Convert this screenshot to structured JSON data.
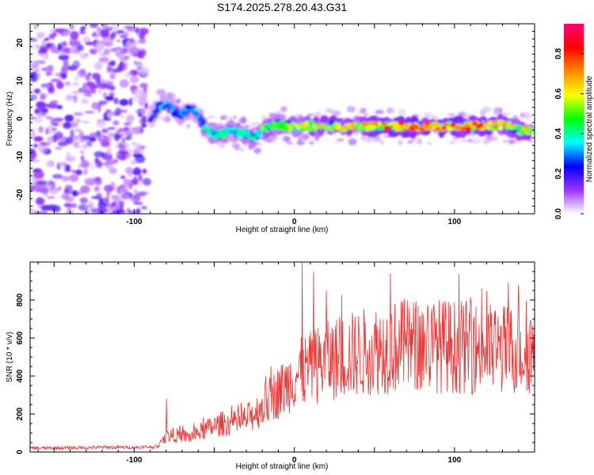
{
  "title": "S174.2025.278.20.43.G31",
  "chart_data": [
    {
      "type": "heatmap",
      "name": "spectrogram",
      "xlabel": "Height of straight line (km)",
      "ylabel": "Frequency (Hz)",
      "xlim": [
        -165,
        150
      ],
      "ylim": [
        -25,
        25
      ],
      "xticks": [
        -100,
        0,
        100
      ],
      "yticks": [
        -20,
        -10,
        0,
        10,
        20
      ],
      "xtick_labels": [
        "-100",
        "0",
        "100"
      ],
      "ytick_labels": [
        "-20",
        "-10",
        "0",
        "10",
        "20"
      ],
      "colorbar": {
        "label": "Normalized spectral amplitude",
        "range": [
          0,
          0.95
        ],
        "ticks": [
          0.0,
          0.2,
          0.4,
          0.6,
          0.8
        ],
        "tick_labels": [
          "0.0",
          "0.2",
          "0.4",
          "0.6",
          "0.8"
        ],
        "colors": [
          "#ffffff",
          "#9933ff",
          "#0000ff",
          "#00ffff",
          "#00ff00",
          "#ffff00",
          "#ff8800",
          "#ff0000",
          "#ff0077"
        ]
      },
      "noise_region": {
        "x_range": [
          -165,
          -92
        ],
        "y_range": [
          -25,
          25
        ]
      },
      "signal_trace": {
        "x": [
          -90,
          -85,
          -80,
          -75,
          -70,
          -65,
          -60,
          -55,
          -50,
          -45,
          -40,
          -35,
          -30,
          -25,
          -20,
          -15,
          -10,
          -5,
          0,
          10,
          20,
          30,
          40,
          50,
          60,
          70,
          80,
          90,
          100,
          110,
          120,
          130,
          140,
          148
        ],
        "y": [
          0,
          3,
          4,
          2,
          1,
          3,
          1,
          -3,
          -4,
          -4,
          -3,
          -4,
          -4,
          -5,
          -3,
          -2,
          -1.5,
          -2,
          -2,
          -2,
          -2,
          -2,
          -2,
          -2,
          -2,
          -2,
          -2,
          -2,
          -2,
          -2,
          -2,
          -1.5,
          -3,
          -3
        ],
        "amplitude": [
          0.2,
          0.3,
          0.35,
          0.3,
          0.35,
          0.3,
          0.35,
          0.4,
          0.45,
          0.42,
          0.4,
          0.42,
          0.45,
          0.4,
          0.5,
          0.55,
          0.5,
          0.6,
          0.55,
          0.6,
          0.65,
          0.7,
          0.65,
          0.75,
          0.8,
          0.85,
          0.82,
          0.85,
          0.8,
          0.85,
          0.78,
          0.7,
          0.6,
          0.65
        ]
      }
    },
    {
      "type": "line",
      "name": "snr",
      "xlabel": "Height of straight line (km)",
      "ylabel": "SNR (10 * v/v)",
      "xlim": [
        -165,
        150
      ],
      "ylim": [
        0,
        1000
      ],
      "xticks": [
        -100,
        0,
        100
      ],
      "yticks": [
        0,
        200,
        400,
        600,
        800
      ],
      "xtick_labels": [
        "-100",
        "0",
        "100"
      ],
      "ytick_labels": [
        "0",
        "200",
        "400",
        "600",
        "800"
      ],
      "color": "#ee3333",
      "envelope": {
        "x": [
          -165,
          -140,
          -120,
          -100,
          -85,
          -82,
          -75,
          -65,
          -55,
          -45,
          -35,
          -25,
          -15,
          -5,
          0,
          5,
          15,
          25,
          35,
          50,
          70,
          90,
          110,
          130,
          150
        ],
        "y": [
          20,
          22,
          25,
          25,
          28,
          80,
          90,
          80,
          120,
          150,
          150,
          200,
          280,
          350,
          400,
          420,
          460,
          490,
          510,
          540,
          560,
          560,
          550,
          540,
          540
        ]
      },
      "peaks": [
        {
          "x": 5,
          "y": 1000
        },
        {
          "x": 12,
          "y": 950
        },
        {
          "x": 60,
          "y": 940
        },
        {
          "x": 140,
          "y": 880
        },
        {
          "x": 20,
          "y": 850
        },
        {
          "x": -80,
          "y": 280
        }
      ]
    }
  ]
}
